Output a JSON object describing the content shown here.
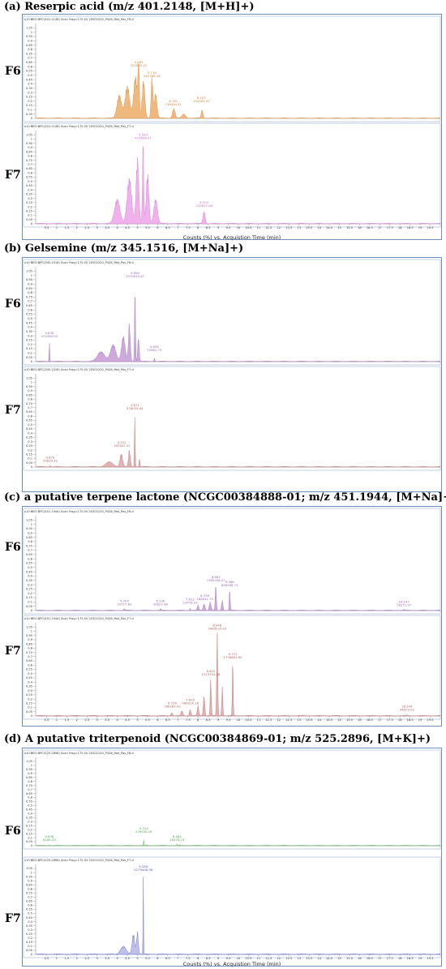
{
  "sections": [
    {
      "title": "(a) Reserpic acid (m/z 401.2148, [M+H]+)",
      "axis_title": "Counts (%) vs. Acquistion Time (min)",
      "plots": [
        {
          "label": "F6",
          "header": "+ESI BPC(401.2148) Scan Frag=175.0V 20201220_P428_Met_Pos_F6.d",
          "ymult": "x10 3"
        },
        {
          "label": "F7",
          "header": "+ESI BPC(401.2148) Scan Frag=175.0V 20201220_P428_Met_Pos_F7.d",
          "ymult": "x10 3"
        }
      ]
    },
    {
      "title": "(b) Gelsemine (m/z 345.1516, [M+Na]+)",
      "axis_title": "",
      "plots": [
        {
          "label": "F6",
          "header": "+ESI BPC(345.1516) Scan Frag=175.0V 20201220_P428_Met_Pos_F6.d",
          "ymult": "x10 3"
        },
        {
          "label": "F7",
          "header": "+ESI BPC(345.1516) Scan Frag=175.0V 20201220_P428_Met_Pos_F7.d",
          "ymult": "x10 3"
        }
      ]
    },
    {
      "title": "(c) a putative terpene lactone (NCGC00384888-01; m/z 451.1944, [M+Na]+)",
      "axis_title": "",
      "plots": [
        {
          "label": "F6",
          "header": "+ESI BPC(451.1944) Scan Frag=175.0V 20201220_P428_Met_Pos_F6.d",
          "ymult": "x10 3"
        },
        {
          "label": "F7",
          "header": "+ESI BPC(451.1944) Scan Frag=175.0V 20201220_P428_Met_Pos_F7.d",
          "ymult": "x10 3"
        }
      ]
    },
    {
      "title": "(d) A putative triterpenoid (NCGC00384869-01; m/z 525.2896, [M+K]+)",
      "axis_title": "Counts (%) vs. Acquistion Time (min)",
      "plots": [
        {
          "label": "F6",
          "header": "+ESI BPC(525.2896) Scan Frag=175.0V 20201220_P428_Met_Pos_F6.d",
          "ymult": "x10 3"
        },
        {
          "label": "F7",
          "header": "+ESI BPC(525.2896) Scan Frag=175.0V 20201220_P428_Met_Pos_F7.d",
          "ymult": "x10 3"
        }
      ]
    }
  ],
  "chart_data": [
    {
      "type": "area",
      "name": "a-F6",
      "color": "#f0b070",
      "stroke": "#d08840",
      "x_range": [
        0,
        20
      ],
      "y_range": [
        0,
        1.1
      ],
      "peaks": [
        {
          "t": 4.1,
          "h": 0.28,
          "w": 0.25
        },
        {
          "t": 4.5,
          "h": 0.38,
          "w": 0.25
        },
        {
          "t": 4.9,
          "h": 0.5,
          "w": 0.2
        },
        {
          "t": 5.06,
          "h": 0.62,
          "w": 0.08
        },
        {
          "t": 5.3,
          "h": 0.45,
          "w": 0.15
        },
        {
          "t": 5.72,
          "h": 0.5,
          "w": 0.1
        },
        {
          "t": 5.9,
          "h": 0.3,
          "w": 0.15
        },
        {
          "t": 6.8,
          "h": 0.12,
          "w": 0.15
        },
        {
          "t": 7.3,
          "h": 0.05,
          "w": 0.2
        },
        {
          "t": 8.2,
          "h": 0.1,
          "w": 0.1
        }
      ],
      "labels": [
        {
          "t": 5.063,
          "y": 0.6,
          "text": [
            "5.063",
            "321883.22"
          ]
        },
        {
          "t": 5.718,
          "y": 0.48,
          "text": [
            "5.718",
            "263788.28"
          ]
        },
        {
          "t": 6.781,
          "y": 0.15,
          "text": [
            "6.781",
            "136494.11"
          ]
        },
        {
          "t": 8.167,
          "y": 0.19,
          "text": [
            "8.167",
            "105163.32"
          ]
        }
      ]
    },
    {
      "type": "area",
      "name": "a-F7",
      "color": "#f0a8ea",
      "stroke": "#c870c8",
      "x_range": [
        0,
        20
      ],
      "y_range": [
        0,
        1.1
      ],
      "peaks": [
        {
          "t": 4.0,
          "h": 0.3,
          "w": 0.3
        },
        {
          "t": 4.6,
          "h": 0.55,
          "w": 0.25
        },
        {
          "t": 5.0,
          "h": 0.8,
          "w": 0.15
        },
        {
          "t": 5.28,
          "h": 1.0,
          "w": 0.07
        },
        {
          "t": 5.5,
          "h": 0.6,
          "w": 0.15
        },
        {
          "t": 5.9,
          "h": 0.3,
          "w": 0.2
        },
        {
          "t": 8.3,
          "h": 0.15,
          "w": 0.12
        }
      ],
      "labels": [
        {
          "t": 5.283,
          "y": 1.0,
          "text": [
            "5.283",
            "624698.01"
          ]
        },
        {
          "t": 8.303,
          "y": 0.2,
          "text": [
            "8.303",
            "229615.06"
          ]
        }
      ]
    },
    {
      "type": "area",
      "name": "b-F6",
      "color": "#c8a0d8",
      "stroke": "#9a6ab0",
      "x_range": [
        0,
        20
      ],
      "y_range": [
        0,
        1.1
      ],
      "peaks": [
        {
          "t": 0.64,
          "h": 0.22,
          "w": 0.04
        },
        {
          "t": 3.2,
          "h": 0.12,
          "w": 0.4
        },
        {
          "t": 3.8,
          "h": 0.2,
          "w": 0.3
        },
        {
          "t": 4.3,
          "h": 0.3,
          "w": 0.2
        },
        {
          "t": 4.6,
          "h": 0.45,
          "w": 0.1
        },
        {
          "t": 4.88,
          "h": 0.95,
          "w": 0.05
        },
        {
          "t": 5.05,
          "h": 0.3,
          "w": 0.08
        },
        {
          "t": 5.84,
          "h": 0.04,
          "w": 0.05
        }
      ],
      "labels": [
        {
          "t": 0.638,
          "y": 0.28,
          "text": [
            "0.638",
            "471360.02"
          ]
        },
        {
          "t": 4.884,
          "y": 0.98,
          "text": [
            "4.884",
            "1070045.87"
          ]
        },
        {
          "t": 5.836,
          "y": 0.12,
          "text": [
            "5.836",
            "70981.73"
          ]
        }
      ]
    },
    {
      "type": "area",
      "name": "b-F7",
      "color": "#e0a8a8",
      "stroke": "#b46464",
      "x_range": [
        0,
        20
      ],
      "y_range": [
        0,
        1.1
      ],
      "peaks": [
        {
          "t": 0.68,
          "h": 0.02,
          "w": 0.05
        },
        {
          "t": 3.6,
          "h": 0.06,
          "w": 0.4
        },
        {
          "t": 4.2,
          "h": 0.16,
          "w": 0.15
        },
        {
          "t": 4.6,
          "h": 0.2,
          "w": 0.1
        },
        {
          "t": 4.87,
          "h": 0.65,
          "w": 0.04
        },
        {
          "t": 5.1,
          "h": 0.1,
          "w": 0.05
        }
      ],
      "labels": [
        {
          "t": 0.679,
          "y": 0.06,
          "text": [
            "0.679",
            "20839.32"
          ]
        },
        {
          "t": 4.231,
          "y": 0.24,
          "text": [
            "4.231",
            "187647.21"
          ]
        },
        {
          "t": 4.871,
          "y": 0.68,
          "text": [
            "4.871",
            "578059.44"
          ]
        }
      ]
    },
    {
      "type": "area",
      "name": "c-F6",
      "color": "#c8a0d8",
      "stroke": "#9a6ab0",
      "x_range": [
        0,
        20
      ],
      "y_range": [
        0,
        1.1
      ],
      "peaks": [
        {
          "t": 4.35,
          "h": 0.02,
          "w": 0.05
        },
        {
          "t": 6.15,
          "h": 0.02,
          "w": 0.05
        },
        {
          "t": 7.61,
          "h": 0.03,
          "w": 0.05
        },
        {
          "t": 8.0,
          "h": 0.06,
          "w": 0.08
        },
        {
          "t": 8.3,
          "h": 0.08,
          "w": 0.1
        },
        {
          "t": 8.6,
          "h": 0.1,
          "w": 0.1
        },
        {
          "t": 8.88,
          "h": 0.3,
          "w": 0.06
        },
        {
          "t": 9.2,
          "h": 0.12,
          "w": 0.08
        },
        {
          "t": 9.57,
          "h": 0.25,
          "w": 0.05
        },
        {
          "t": 18.2,
          "h": 0.01,
          "w": 0.05
        }
      ],
      "labels": [
        {
          "t": 4.353,
          "y": 0.06,
          "text": [
            "4.353",
            "19717.83"
          ]
        },
        {
          "t": 6.136,
          "y": 0.06,
          "text": [
            "6.136",
            "20823.46"
          ]
        },
        {
          "t": 7.612,
          "y": 0.08,
          "text": [
            "7.612",
            "21478.23"
          ]
        },
        {
          "t": 8.336,
          "y": 0.12,
          "text": [
            "8.336",
            "185641.75"
          ]
        },
        {
          "t": 8.883,
          "y": 0.34,
          "text": [
            "8.883",
            "1389296.07"
          ]
        },
        {
          "t": 9.568,
          "y": 0.28,
          "text": [
            "9.568",
            "648308.73"
          ]
        },
        {
          "t": 18.197,
          "y": 0.05,
          "text": [
            "18.197",
            "18272.57"
          ]
        }
      ]
    },
    {
      "type": "area",
      "name": "c-F7",
      "color": "#e0a8a8",
      "stroke": "#b46464",
      "x_range": [
        0,
        20
      ],
      "y_range": [
        0,
        1.1
      ],
      "peaks": [
        {
          "t": 6.7,
          "h": 0.04,
          "w": 0.1
        },
        {
          "t": 7.2,
          "h": 0.06,
          "w": 0.1
        },
        {
          "t": 7.61,
          "h": 0.08,
          "w": 0.08
        },
        {
          "t": 8.0,
          "h": 0.12,
          "w": 0.08
        },
        {
          "t": 8.3,
          "h": 0.25,
          "w": 0.08
        },
        {
          "t": 8.63,
          "h": 0.45,
          "w": 0.06
        },
        {
          "t": 8.95,
          "h": 1.0,
          "w": 0.06
        },
        {
          "t": 9.2,
          "h": 0.35,
          "w": 0.06
        },
        {
          "t": 9.72,
          "h": 0.65,
          "w": 0.05
        },
        {
          "t": 18.34,
          "h": 0.01,
          "w": 0.05
        }
      ],
      "labels": [
        {
          "t": 6.726,
          "y": 0.1,
          "text": [
            "6.726",
            "166183.02"
          ]
        },
        {
          "t": 7.615,
          "y": 0.14,
          "text": [
            "7.615",
            "468914.16"
          ]
        },
        {
          "t": 8.632,
          "y": 0.48,
          "text": [
            "8.632",
            "1223794.68"
          ]
        },
        {
          "t": 8.948,
          "y": 1.02,
          "text": [
            "8.948",
            "3965233.10"
          ]
        },
        {
          "t": 9.722,
          "y": 0.68,
          "text": [
            "9.722",
            "1738853.95"
          ]
        },
        {
          "t": 18.344,
          "y": 0.06,
          "text": [
            "18.344",
            "44619.01"
          ]
        }
      ]
    },
    {
      "type": "area",
      "name": "d-F6",
      "color": "#a8e0a0",
      "stroke": "#50a050",
      "x_range": [
        0,
        20
      ],
      "y_range": [
        0,
        1.1
      ],
      "peaks": [
        {
          "t": 0.64,
          "h": 0.01,
          "w": 0.05
        },
        {
          "t": 5.31,
          "h": 0.08,
          "w": 0.03
        },
        {
          "t": 6.96,
          "h": 0.02,
          "w": 0.04
        }
      ],
      "labels": [
        {
          "t": 0.638,
          "y": 0.06,
          "text": [
            "0.638",
            "6169.43"
          ]
        },
        {
          "t": 5.314,
          "y": 0.16,
          "text": [
            "5.314",
            "279530.16"
          ]
        },
        {
          "t": 6.962,
          "y": 0.06,
          "text": [
            "6.962",
            "16478.23"
          ]
        }
      ]
    },
    {
      "type": "area",
      "name": "d-F7",
      "color": "#b8b8ea",
      "stroke": "#5858c0",
      "x_range": [
        0,
        20
      ],
      "y_range": [
        0,
        1.1
      ],
      "peaks": [
        {
          "t": 4.3,
          "h": 0.1,
          "w": 0.3
        },
        {
          "t": 4.8,
          "h": 0.25,
          "w": 0.15
        },
        {
          "t": 5.0,
          "h": 0.28,
          "w": 0.1
        },
        {
          "t": 5.29,
          "h": 1.0,
          "w": 0.03
        }
      ],
      "labels": [
        {
          "t": 5.289,
          "y": 1.02,
          "text": [
            "5.289",
            "2279408.38"
          ]
        }
      ]
    }
  ],
  "y_ticks": [
    "0",
    "0.05",
    "0.1",
    "0.15",
    "0.2",
    "0.25",
    "0.3",
    "0.35",
    "0.4",
    "0.45",
    "0.5",
    "0.55",
    "0.6",
    "0.65",
    "0.7",
    "0.75",
    "0.8",
    "0.85",
    "0.9",
    "0.95",
    "1",
    "1.05"
  ],
  "x_ticks": [
    "0.5",
    "1",
    "1.5",
    "2",
    "2.5",
    "3",
    "3.5",
    "4",
    "4.5",
    "5",
    "5.5",
    "6",
    "6.5",
    "7",
    "7.5",
    "8",
    "8.5",
    "9",
    "9.5",
    "10",
    "10.5",
    "11",
    "11.5",
    "12",
    "12.5",
    "13",
    "13.5",
    "14",
    "14.5",
    "15",
    "15.5",
    "16",
    "16.5",
    "17",
    "17.5",
    "18",
    "18.5",
    "19",
    "19.5"
  ]
}
